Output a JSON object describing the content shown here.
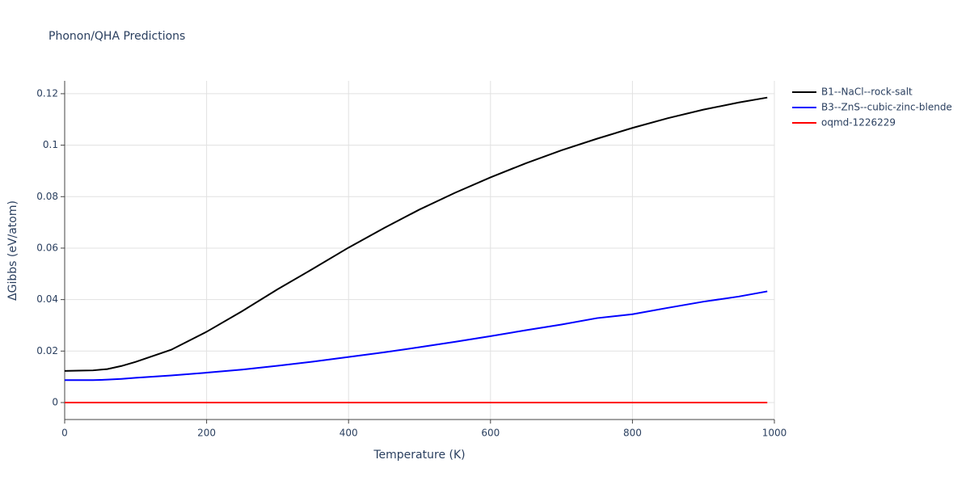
{
  "chart_data": {
    "type": "line",
    "title": "Phonon/QHA Predictions",
    "x_label": "Temperature (K)",
    "y_label": "ΔGibbs (eV/atom)",
    "x": [
      0,
      20,
      40,
      60,
      80,
      100,
      150,
      200,
      250,
      300,
      350,
      400,
      450,
      500,
      550,
      600,
      650,
      700,
      750,
      800,
      850,
      900,
      950,
      990
    ],
    "series": [
      {
        "name": "B1--NaCl--rock-salt",
        "color": "#000000",
        "values": [
          0.0123,
          0.0124,
          0.0125,
          0.013,
          0.0142,
          0.0158,
          0.0205,
          0.0275,
          0.0355,
          0.044,
          0.052,
          0.0602,
          0.0678,
          0.075,
          0.0815,
          0.0875,
          0.093,
          0.098,
          0.1025,
          0.1067,
          0.1105,
          0.1138,
          0.1166,
          0.1185
        ]
      },
      {
        "name": "B3--ZnS--cubic-zinc-blende",
        "color": "#0000ff",
        "values": [
          0.0087,
          0.0087,
          0.0087,
          0.0089,
          0.0092,
          0.0096,
          0.0105,
          0.0116,
          0.0128,
          0.0143,
          0.0159,
          0.0177,
          0.0195,
          0.0215,
          0.0236,
          0.0258,
          0.0281,
          0.0303,
          0.0328,
          0.0343,
          0.0368,
          0.0392,
          0.0412,
          0.0432
        ]
      },
      {
        "name": "oqmd-1226229",
        "color": "#ff0000",
        "values": [
          0,
          0,
          0,
          0,
          0,
          0,
          0,
          0,
          0,
          0,
          0,
          0,
          0,
          0,
          0,
          0,
          0,
          0,
          0,
          0,
          0,
          0,
          0,
          0
        ]
      }
    ],
    "xlim": [
      0,
      1000
    ],
    "xticks": [
      0,
      200,
      400,
      600,
      800,
      1000
    ],
    "ylim": [
      -0.0066,
      0.125
    ],
    "yticks": [
      0,
      0.02,
      0.04,
      0.06,
      0.08,
      0.1,
      0.12
    ],
    "grid": true,
    "legend": "right"
  }
}
